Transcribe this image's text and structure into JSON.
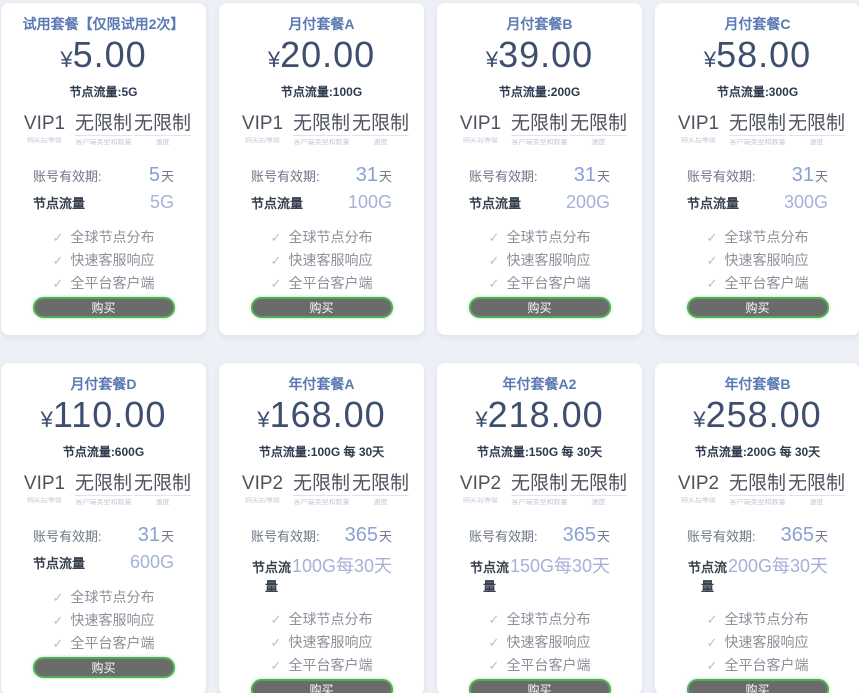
{
  "shared": {
    "currency": "¥",
    "unlimited_label": "无限制",
    "level_caption": "购买后等级",
    "clients_caption": "客户端类型和数量",
    "speed_caption": "速度",
    "validity_label": "账号有效期:",
    "traffic_label": "节点流量",
    "day_unit": "天",
    "check_icon": "✓",
    "features": [
      "全球节点分布",
      "快速客服响应",
      "全平台客户端"
    ],
    "buy_label": "购买"
  },
  "colors": {
    "page_bg": "#eef0f7",
    "title_blue": "#5b79b3",
    "price_dark": "#3d4e6e",
    "value_blue": "#8ba0d3",
    "traffic_blue": "#a5b1d9",
    "button_bg": "#6b6b6b",
    "button_border_green": "#4caf50"
  },
  "plans": [
    {
      "title": "试用套餐【仅限试用2次】",
      "price": "5.00",
      "subtitle": "节点流量:5G",
      "level": "VIP1",
      "validity_num": "5",
      "traffic": "5G"
    },
    {
      "title": "月付套餐A",
      "price": "20.00",
      "subtitle": "节点流量:100G",
      "level": "VIP1",
      "validity_num": "31",
      "traffic": "100G"
    },
    {
      "title": "月付套餐B",
      "price": "39.00",
      "subtitle": "节点流量:200G",
      "level": "VIP1",
      "validity_num": "31",
      "traffic": "200G"
    },
    {
      "title": "月付套餐C",
      "price": "58.00",
      "subtitle": "节点流量:300G",
      "level": "VIP1",
      "validity_num": "31",
      "traffic": "300G"
    },
    {
      "title": "月付套餐D",
      "price": "110.00",
      "subtitle": "节点流量:600G",
      "level": "VIP1",
      "validity_num": "31",
      "traffic": "600G"
    },
    {
      "title": "年付套餐A",
      "price": "168.00",
      "subtitle": "节点流量:100G 每 30天",
      "level": "VIP2",
      "validity_num": "365",
      "traffic": "100G每30天"
    },
    {
      "title": "年付套餐A2",
      "price": "218.00",
      "subtitle": "节点流量:150G 每 30天",
      "level": "VIP2",
      "validity_num": "365",
      "traffic": "150G每30天"
    },
    {
      "title": "年付套餐B",
      "price": "258.00",
      "subtitle": "节点流量:200G 每 30天",
      "level": "VIP2",
      "validity_num": "365",
      "traffic": "200G每30天"
    }
  ]
}
